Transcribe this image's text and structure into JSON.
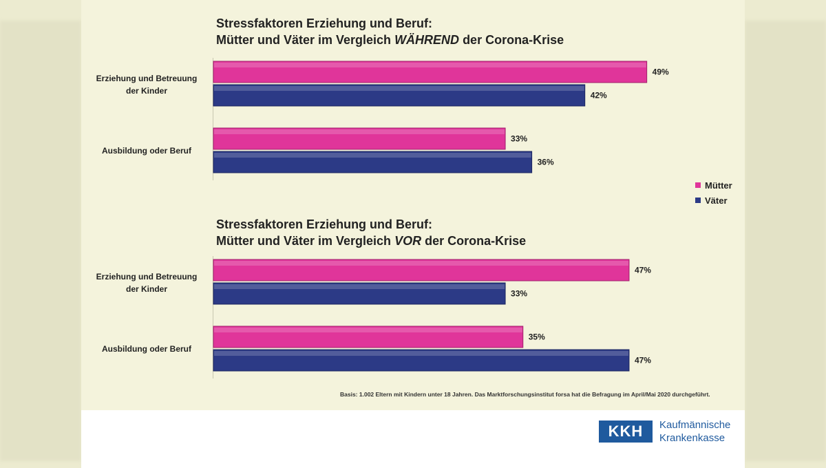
{
  "chart_data": [
    {
      "type": "bar",
      "orientation": "horizontal",
      "title_line1": "Stressfaktoren Erziehung und Beruf:",
      "title_line2_pre": "Mütter und Väter im Vergleich ",
      "title_line2_em": "WÄHREND",
      "title_line2_post": " der Corona-Krise",
      "categories": [
        "Erziehung und Betreuung der Kinder",
        "Ausbildung oder Beruf"
      ],
      "series": [
        {
          "name": "Mütter",
          "values": [
            49,
            33
          ]
        },
        {
          "name": "Väter",
          "values": [
            42,
            36
          ]
        }
      ],
      "value_labels": [
        [
          "49%",
          "33%"
        ],
        [
          "42%",
          "36%"
        ]
      ],
      "xlim": [
        0,
        50
      ]
    },
    {
      "type": "bar",
      "orientation": "horizontal",
      "title_line1": "Stressfaktoren Erziehung und Beruf:",
      "title_line2_pre": "Mütter und Väter im Vergleich ",
      "title_line2_em": "VOR",
      "title_line2_post": " der Corona-Krise",
      "categories": [
        "Erziehung und Betreuung der Kinder",
        "Ausbildung oder Beruf"
      ],
      "series": [
        {
          "name": "Mütter",
          "values": [
            47,
            35
          ]
        },
        {
          "name": "Väter",
          "values": [
            33,
            47
          ]
        }
      ],
      "value_labels": [
        [
          "47%",
          "35%"
        ],
        [
          "33%",
          "47%"
        ]
      ],
      "xlim": [
        0,
        50
      ]
    }
  ],
  "cat_labels": {
    "cat1_line1": "Erziehung und Betreuung",
    "cat1_line2": "der Kinder",
    "cat2": "Ausbildung oder Beruf"
  },
  "legend": {
    "placement": "right",
    "items": [
      {
        "label": "Mütter",
        "color": "#e0359a"
      },
      {
        "label": "Väter",
        "color": "#2c3a86"
      }
    ]
  },
  "colors": {
    "muetter": "#e0359a",
    "vaeter": "#2c3a86"
  },
  "basis": "Basis: 1.002 Eltern mit Kindern unter 18 Jahren. Das Marktforschungsinstitut forsa hat die Befragung im April/Mai 2020 durchgeführt.",
  "footer": {
    "logo": "KKH",
    "brand_line1": "Kaufmännische",
    "brand_line2": "Krankenkasse"
  }
}
